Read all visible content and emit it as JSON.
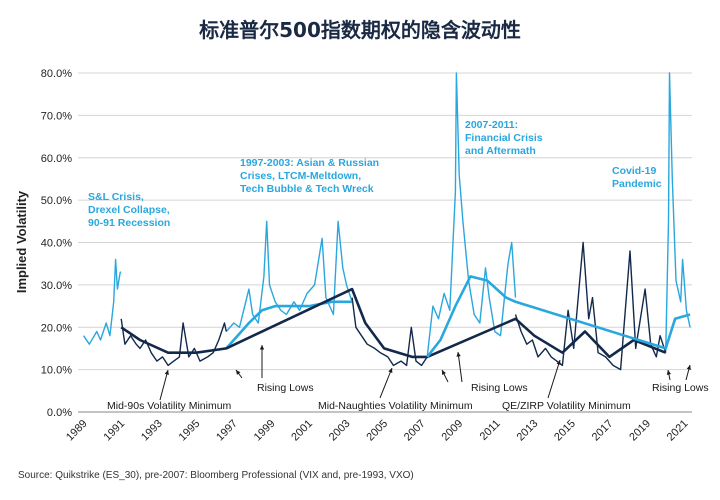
{
  "title": "标准普尔500指数期权的隐含波动性",
  "source": "Source: Quikstrike (ES_30), pre-2007: Bloomberg Professional (VIX and, pre-1993, VXO)",
  "colors": {
    "dark": "#13294b",
    "light": "#29a7de",
    "grid": "#d4d4d4"
  },
  "chart_data": {
    "type": "line",
    "title": "标准普尔500指数期权的隐含波动性",
    "xlabel": "",
    "ylabel": "Implied Volatility",
    "xlim": [
      1988.7,
      2021.4
    ],
    "ylim": [
      0,
      80
    ],
    "y_ticks": [
      0,
      10,
      20,
      30,
      40,
      50,
      60,
      70,
      80
    ],
    "y_tick_labels": [
      "0.0%",
      "10.0%",
      "20.0%",
      "30.0%",
      "40.0%",
      "50.0%",
      "60.0%",
      "70.0%",
      "80.0%"
    ],
    "x_ticks": [
      1989,
      1991,
      1993,
      1995,
      1997,
      1999,
      2001,
      2003,
      2005,
      2007,
      2009,
      2011,
      2013,
      2015,
      2017,
      2019,
      2021
    ],
    "x_tick_labels": [
      "1989",
      "1991",
      "1993",
      "1995",
      "1997",
      "1999",
      "2001",
      "2003",
      "2005",
      "2007",
      "2009",
      "2011",
      "2013",
      "2015",
      "2017",
      "2019",
      "2021"
    ],
    "grid": "horizontal",
    "series": [
      {
        "role": "high-volatility periods (daily)",
        "color": "#29a7de",
        "segments": [
          [
            [
              1989.0,
              18
            ],
            [
              1989.3,
              16
            ],
            [
              1989.7,
              19
            ],
            [
              1989.9,
              17
            ],
            [
              1990.2,
              21
            ],
            [
              1990.4,
              18
            ],
            [
              1990.6,
              26
            ],
            [
              1990.7,
              36
            ],
            [
              1990.8,
              29
            ],
            [
              1990.95,
              33
            ],
            [
              1991.0,
              33
            ]
          ],
          [
            [
              1996.6,
              19
            ],
            [
              1997.0,
              21
            ],
            [
              1997.3,
              20
            ],
            [
              1997.8,
              29
            ],
            [
              1998.0,
              23
            ],
            [
              1998.3,
              21
            ],
            [
              1998.6,
              32
            ],
            [
              1998.75,
              45
            ],
            [
              1998.9,
              30
            ],
            [
              1999.2,
              26
            ],
            [
              1999.5,
              24
            ],
            [
              1999.8,
              23
            ],
            [
              2000.2,
              26
            ],
            [
              2000.5,
              24
            ],
            [
              2000.9,
              28
            ],
            [
              2001.3,
              30
            ],
            [
              2001.7,
              41
            ],
            [
              2001.9,
              27
            ],
            [
              2002.3,
              23
            ],
            [
              2002.55,
              45
            ],
            [
              2002.8,
              34
            ],
            [
              2003.0,
              30
            ],
            [
              2003.3,
              26
            ]
          ],
          [
            [
              2007.3,
              13
            ],
            [
              2007.6,
              25
            ],
            [
              2007.9,
              22
            ],
            [
              2008.2,
              28
            ],
            [
              2008.5,
              24
            ],
            [
              2008.8,
              52
            ],
            [
              2008.85,
              80
            ],
            [
              2009.0,
              56
            ],
            [
              2009.2,
              45
            ],
            [
              2009.5,
              31
            ],
            [
              2009.8,
              23
            ],
            [
              2010.1,
              21
            ],
            [
              2010.4,
              34
            ],
            [
              2010.6,
              27
            ],
            [
              2010.9,
              19
            ],
            [
              2011.2,
              18
            ],
            [
              2011.6,
              35
            ],
            [
              2011.8,
              40
            ],
            [
              2012.0,
              27
            ]
          ],
          [
            [
              2020.0,
              14
            ],
            [
              2020.15,
              45
            ],
            [
              2020.2,
              80
            ],
            [
              2020.35,
              55
            ],
            [
              2020.55,
              31
            ],
            [
              2020.8,
              26
            ],
            [
              2020.9,
              36
            ],
            [
              2021.1,
              24
            ],
            [
              2021.3,
              20
            ]
          ]
        ]
      },
      {
        "role": "low-volatility periods (daily)",
        "color": "#13294b",
        "segments": [
          [
            [
              1991.0,
              22
            ],
            [
              1991.2,
              16
            ],
            [
              1991.5,
              18
            ],
            [
              1991.8,
              16
            ],
            [
              1992.0,
              15
            ],
            [
              1992.3,
              17
            ],
            [
              1992.6,
              14
            ],
            [
              1992.9,
              12
            ],
            [
              1993.2,
              13
            ],
            [
              1993.5,
              11
            ],
            [
              1993.8,
              12
            ],
            [
              1994.1,
              13
            ],
            [
              1994.3,
              21
            ],
            [
              1994.6,
              13
            ],
            [
              1994.9,
              15
            ],
            [
              1995.2,
              12
            ],
            [
              1995.6,
              13
            ],
            [
              1995.9,
              14
            ],
            [
              1996.2,
              17
            ],
            [
              1996.5,
              21
            ],
            [
              1996.6,
              19
            ]
          ],
          [
            [
              2003.3,
              27
            ],
            [
              2003.5,
              20
            ],
            [
              2003.8,
              18
            ],
            [
              2004.1,
              16
            ],
            [
              2004.5,
              15
            ],
            [
              2004.8,
              14
            ],
            [
              2005.2,
              13
            ],
            [
              2005.5,
              11
            ],
            [
              2005.9,
              12
            ],
            [
              2006.2,
              11
            ],
            [
              2006.45,
              20
            ],
            [
              2006.7,
              12
            ],
            [
              2007.0,
              11
            ],
            [
              2007.3,
              13
            ]
          ],
          [
            [
              2012.0,
              23
            ],
            [
              2012.3,
              19
            ],
            [
              2012.6,
              16
            ],
            [
              2012.9,
              17
            ],
            [
              2013.2,
              13
            ],
            [
              2013.6,
              15
            ],
            [
              2013.9,
              13
            ],
            [
              2014.2,
              12
            ],
            [
              2014.5,
              11
            ],
            [
              2014.8,
              24
            ],
            [
              2015.1,
              15
            ],
            [
              2015.6,
              40
            ],
            [
              2015.9,
              22
            ],
            [
              2016.1,
              27
            ],
            [
              2016.4,
              14
            ],
            [
              2016.8,
              13
            ],
            [
              2017.2,
              11
            ],
            [
              2017.6,
              10
            ],
            [
              2018.1,
              38
            ],
            [
              2018.4,
              15
            ],
            [
              2018.9,
              29
            ],
            [
              2019.2,
              16
            ],
            [
              2019.5,
              13
            ],
            [
              2019.7,
              18
            ],
            [
              2020.0,
              14
            ]
          ]
        ]
      },
      {
        "role": "trailing average (rising lows)",
        "color": "#29a7de",
        "points": [
          [
            1996.6,
            15
          ],
          [
            1997.2,
            18
          ],
          [
            1997.8,
            21
          ],
          [
            1998.5,
            24
          ],
          [
            1999.2,
            25
          ],
          [
            2000.0,
            25
          ],
          [
            2001.0,
            25
          ],
          [
            2002.2,
            26
          ],
          [
            2003.3,
            26
          ]
        ]
      },
      {
        "role": "trailing average (low-volatility periods)",
        "color": "#13294b",
        "points": [
          [
            1991.0,
            20
          ],
          [
            1992.0,
            17
          ],
          [
            1993.5,
            14
          ],
          [
            1995.0,
            14
          ],
          [
            1996.6,
            15
          ],
          [
            2003.3,
            29
          ],
          [
            2004.0,
            21
          ],
          [
            2005.0,
            15
          ],
          [
            2006.5,
            13
          ],
          [
            2007.3,
            13
          ],
          [
            2012.0,
            22
          ],
          [
            2013.0,
            18
          ],
          [
            2014.5,
            14
          ],
          [
            2015.7,
            19
          ],
          [
            2017.0,
            13
          ],
          [
            2018.3,
            17
          ],
          [
            2020.0,
            14
          ]
        ]
      },
      {
        "role": "trailing average (crisis periods)",
        "color": "#29a7de",
        "points": [
          [
            2007.3,
            13
          ],
          [
            2008.0,
            17
          ],
          [
            2008.8,
            25
          ],
          [
            2009.6,
            32
          ],
          [
            2010.5,
            31
          ],
          [
            2011.5,
            27
          ],
          [
            2012.0,
            26
          ],
          [
            2020.0,
            15
          ],
          [
            2020.5,
            22
          ],
          [
            2021.3,
            23
          ]
        ]
      }
    ],
    "annotations": [
      {
        "text": "S&L Crisis,\nDrexel Collapse,\n90-91 Recession",
        "style": "blue"
      },
      {
        "text": "1997-2003: Asian & Russian\nCrises, LTCM-Meltdown,\nTech Bubble & Tech Wreck",
        "style": "blue"
      },
      {
        "text": "2007-2011:\nFinancial Crisis\nand Aftermath",
        "style": "blue"
      },
      {
        "text": "Covid-19\nPandemic",
        "style": "blue"
      },
      {
        "text": "Mid-90s Volatility Minimum",
        "style": "dark"
      },
      {
        "text": "Rising Lows",
        "style": "dark"
      },
      {
        "text": "Mid-Naughties Volatility Minimum",
        "style": "dark"
      },
      {
        "text": "Rising Lows",
        "style": "dark"
      },
      {
        "text": "QE/ZIRP Volatility Minimum",
        "style": "dark"
      },
      {
        "text": "Rising Lows",
        "style": "dark"
      }
    ]
  }
}
